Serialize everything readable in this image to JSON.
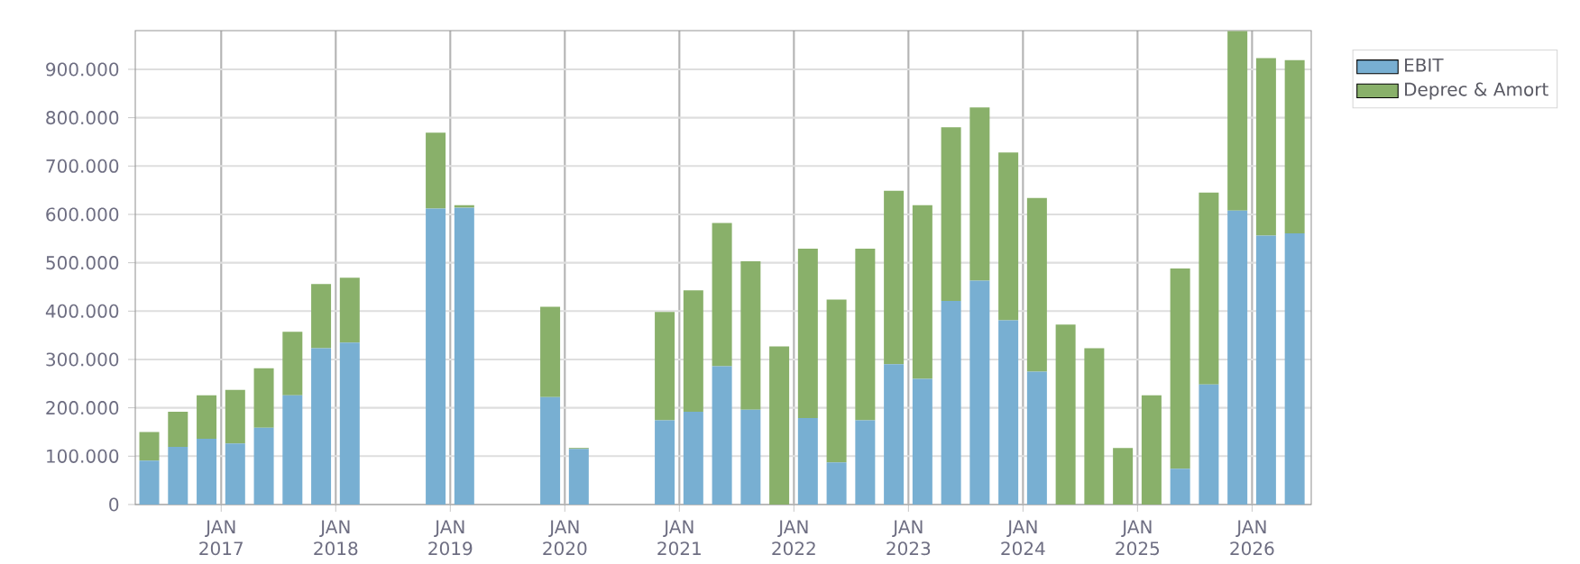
{
  "chart_data": {
    "type": "bar",
    "stacked": true,
    "x": [
      "2016-05-15",
      "2016-08-15",
      "2016-11-15",
      "2017-02-15",
      "2017-05-15",
      "2017-08-15",
      "2017-11-15",
      "2018-02-15",
      "2018-11-15",
      "2019-02-15",
      "2019-11-15",
      "2020-02-15",
      "2020-11-15",
      "2021-02-15",
      "2021-05-15",
      "2021-08-15",
      "2021-11-15",
      "2022-02-15",
      "2022-05-15",
      "2022-08-15",
      "2022-11-15",
      "2023-02-15",
      "2023-05-15",
      "2023-08-15",
      "2023-11-15",
      "2024-02-15",
      "2024-05-15",
      "2024-08-15",
      "2024-11-15",
      "2025-02-15",
      "2025-05-15",
      "2025-08-15",
      "2025-11-15",
      "2026-02-15",
      "2026-05-15"
    ],
    "series": [
      {
        "name": "EBIT",
        "color": "#78afd2",
        "values": [
          91000,
          119000,
          136000,
          126000,
          159000,
          226000,
          323000,
          335000,
          612000,
          614000,
          222000,
          115000,
          174000,
          192000,
          286000,
          196000,
          0,
          179000,
          87000,
          174000,
          290000,
          260000,
          421000,
          463000,
          381000,
          275000,
          0,
          0,
          0,
          0,
          74000,
          248000,
          608000,
          556000,
          561000
        ]
      },
      {
        "name": "Deprec & Amort",
        "color": "#89b06a",
        "values": [
          59000,
          73000,
          90000,
          111000,
          123000,
          131000,
          133000,
          134000,
          157000,
          5000,
          187000,
          2000,
          224000,
          251000,
          296000,
          307000,
          327000,
          350000,
          337000,
          355000,
          359000,
          359000,
          359000,
          358000,
          347000,
          359000,
          372000,
          323000,
          117000,
          226000,
          414000,
          397000,
          371000,
          367000,
          358000
        ]
      }
    ],
    "xlim": [
      "2016-04-01",
      "2026-07-07"
    ],
    "xticks": [
      {
        "value": "2017-01-01",
        "label": "JAN 2017"
      },
      {
        "value": "2018-01-01",
        "label": "JAN 2018"
      },
      {
        "value": "2019-01-01",
        "label": "JAN 2019"
      },
      {
        "value": "2020-01-01",
        "label": "JAN 2020"
      },
      {
        "value": "2021-01-01",
        "label": "JAN 2021"
      },
      {
        "value": "2022-01-01",
        "label": "JAN 2022"
      },
      {
        "value": "2023-01-01",
        "label": "JAN 2023"
      },
      {
        "value": "2024-01-01",
        "label": "JAN 2024"
      },
      {
        "value": "2025-01-01",
        "label": "JAN 2025"
      },
      {
        "value": "2026-01-01",
        "label": "JAN 2026"
      }
    ],
    "ylim": [
      0,
      980000
    ],
    "yticks": [
      {
        "value": 0,
        "label": "0"
      },
      {
        "value": 100000,
        "label": "100.000"
      },
      {
        "value": 200000,
        "label": "200.000"
      },
      {
        "value": 300000,
        "label": "300.000"
      },
      {
        "value": 400000,
        "label": "400.000"
      },
      {
        "value": 500000,
        "label": "500.000"
      },
      {
        "value": 600000,
        "label": "600.000"
      },
      {
        "value": 700000,
        "label": "700.000"
      },
      {
        "value": 800000,
        "label": "800.000"
      },
      {
        "value": 900000,
        "label": "900.000"
      }
    ],
    "grid": true,
    "legend": "top right"
  }
}
